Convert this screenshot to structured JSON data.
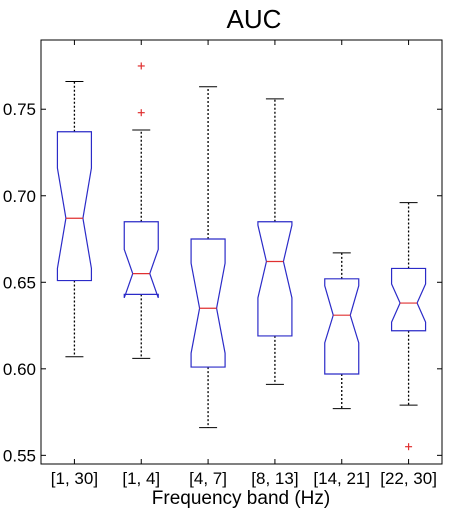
{
  "chart_data": {
    "type": "boxplot",
    "title": "AUC",
    "xlabel": "Frequency band (Hz)",
    "ylabel": "",
    "ylim": [
      0.545,
      0.79
    ],
    "yticks": [
      "0.55",
      "0.60",
      "0.65",
      "0.70",
      "0.75"
    ],
    "notched": true,
    "colors": {
      "box": "#2b2bc8",
      "median": "#e03030",
      "whisker": "#000000",
      "outlier": "#e03030",
      "axis": "#000000"
    },
    "categories": [
      "[1, 30]",
      "[1, 4]",
      "[4, 7]",
      "[8, 13]",
      "[14, 21]",
      "[22, 30]"
    ],
    "boxes": [
      {
        "category": "[1, 30]",
        "whisker_low": 0.607,
        "q1": 0.651,
        "median": 0.687,
        "q3": 0.737,
        "whisker_high": 0.766,
        "notch_low": 0.658,
        "notch_high": 0.716,
        "outliers": []
      },
      {
        "category": "[1, 4]",
        "whisker_low": 0.606,
        "q1": 0.643,
        "median": 0.655,
        "q3": 0.685,
        "whisker_high": 0.738,
        "notch_low": 0.641,
        "notch_high": 0.669,
        "outliers": [
          0.775,
          0.748
        ]
      },
      {
        "category": "[4, 7]",
        "whisker_low": 0.566,
        "q1": 0.601,
        "median": 0.635,
        "q3": 0.675,
        "whisker_high": 0.763,
        "notch_low": 0.609,
        "notch_high": 0.661,
        "outliers": []
      },
      {
        "category": "[8, 13]",
        "whisker_low": 0.591,
        "q1": 0.619,
        "median": 0.662,
        "q3": 0.685,
        "whisker_high": 0.756,
        "notch_low": 0.641,
        "notch_high": 0.683,
        "outliers": []
      },
      {
        "category": "[14, 21]",
        "whisker_low": 0.577,
        "q1": 0.597,
        "median": 0.631,
        "q3": 0.652,
        "whisker_high": 0.667,
        "notch_low": 0.615,
        "notch_high": 0.648,
        "outliers": []
      },
      {
        "category": "[22, 30]",
        "whisker_low": 0.579,
        "q1": 0.622,
        "median": 0.638,
        "q3": 0.658,
        "whisker_high": 0.696,
        "notch_low": 0.627,
        "notch_high": 0.649,
        "outliers": [
          0.555
        ]
      }
    ]
  }
}
